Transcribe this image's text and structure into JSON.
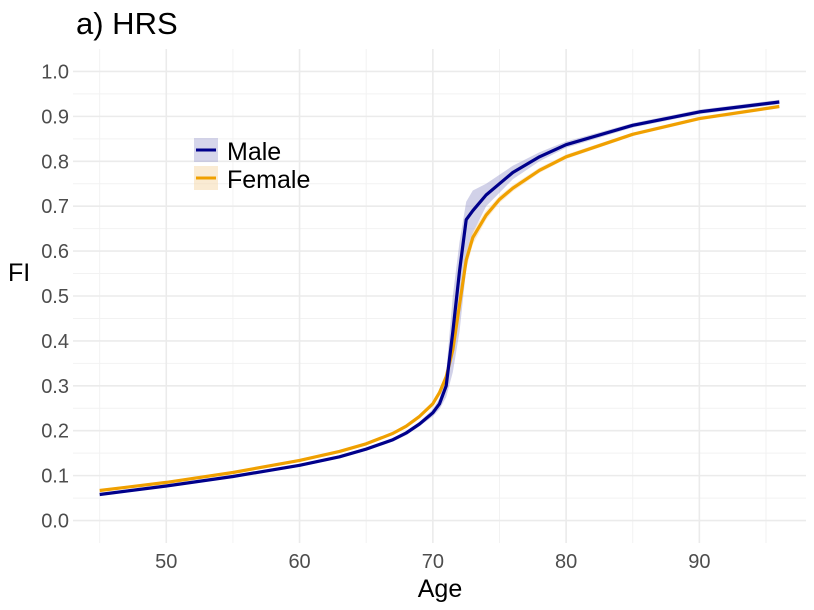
{
  "chart_data": {
    "type": "line",
    "title": "a) HRS",
    "xlabel": "Age",
    "ylabel": "FI",
    "xlim": [
      43,
      98
    ],
    "ylim": [
      -0.05,
      1.05
    ],
    "xticks": [
      50,
      60,
      70,
      80,
      90
    ],
    "yticks": [
      0.0,
      0.1,
      0.2,
      0.3,
      0.4,
      0.5,
      0.6,
      0.7,
      0.8,
      0.9,
      1.0
    ],
    "ytick_labels": [
      "0.0",
      "0.1",
      "0.2",
      "0.3",
      "0.4",
      "0.5",
      "0.6",
      "0.7",
      "0.8",
      "0.9",
      "1.0"
    ],
    "grid": true,
    "legend_position": "top-left",
    "series": [
      {
        "name": "Male",
        "color": "#00008B",
        "band_color": "#9999CC",
        "x": [
          45,
          50,
          55,
          60,
          63,
          65,
          67,
          68,
          69,
          70,
          70.5,
          71,
          71.5,
          72,
          72.5,
          73,
          74,
          75,
          76,
          78,
          80,
          85,
          90,
          96
        ],
        "y": [
          0.058,
          0.077,
          0.098,
          0.123,
          0.142,
          0.159,
          0.18,
          0.195,
          0.215,
          0.24,
          0.26,
          0.3,
          0.42,
          0.555,
          0.67,
          0.69,
          0.725,
          0.75,
          0.775,
          0.81,
          0.837,
          0.88,
          0.91,
          0.932
        ],
        "lower": [
          0.055,
          0.074,
          0.095,
          0.12,
          0.139,
          0.155,
          0.176,
          0.19,
          0.21,
          0.232,
          0.248,
          0.275,
          0.33,
          0.42,
          0.56,
          0.64,
          0.7,
          0.73,
          0.76,
          0.8,
          0.83,
          0.875,
          0.905,
          0.927
        ],
        "upper": [
          0.061,
          0.08,
          0.101,
          0.126,
          0.145,
          0.163,
          0.184,
          0.2,
          0.22,
          0.248,
          0.272,
          0.33,
          0.5,
          0.62,
          0.71,
          0.735,
          0.75,
          0.77,
          0.79,
          0.82,
          0.844,
          0.885,
          0.915,
          0.937
        ]
      },
      {
        "name": "Female",
        "color": "#F0A000",
        "band_color": "#F5D8A8",
        "x": [
          45,
          50,
          55,
          60,
          63,
          65,
          67,
          68,
          69,
          70,
          70.5,
          71,
          71.5,
          72,
          72.5,
          73,
          74,
          75,
          76,
          78,
          80,
          85,
          90,
          96
        ],
        "y": [
          0.067,
          0.085,
          0.107,
          0.134,
          0.154,
          0.171,
          0.194,
          0.21,
          0.232,
          0.26,
          0.285,
          0.32,
          0.38,
          0.48,
          0.58,
          0.63,
          0.68,
          0.715,
          0.74,
          0.78,
          0.81,
          0.86,
          0.895,
          0.922
        ],
        "lower": [
          0.064,
          0.082,
          0.104,
          0.131,
          0.151,
          0.168,
          0.191,
          0.207,
          0.228,
          0.255,
          0.278,
          0.31,
          0.365,
          0.46,
          0.56,
          0.615,
          0.67,
          0.707,
          0.733,
          0.774,
          0.805,
          0.856,
          0.891,
          0.918
        ],
        "upper": [
          0.07,
          0.088,
          0.11,
          0.137,
          0.157,
          0.174,
          0.197,
          0.213,
          0.236,
          0.265,
          0.292,
          0.33,
          0.395,
          0.5,
          0.6,
          0.645,
          0.69,
          0.723,
          0.747,
          0.786,
          0.815,
          0.864,
          0.899,
          0.926
        ]
      }
    ]
  }
}
